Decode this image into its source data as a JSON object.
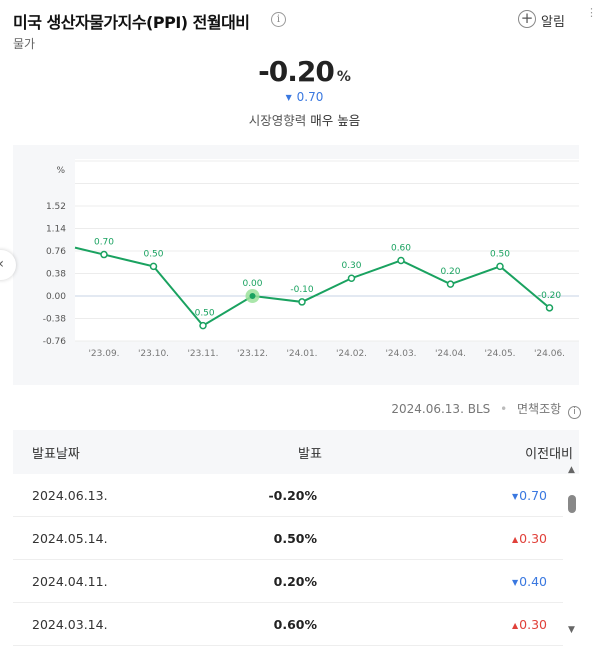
{
  "header": {
    "title": "미국 생산자물가지수(PPI) 전월대비",
    "info_icon": "i",
    "alarm_plus": "+",
    "alarm_label": "알림",
    "more_icon": "⋮",
    "category": "물가"
  },
  "summary": {
    "value": "-0.20",
    "unit": "%",
    "change_arrow": "▼",
    "change": "0.70",
    "impact_label": "시장영향력",
    "impact_value": "매우 높음"
  },
  "nav": {
    "prev_icon": "‹"
  },
  "colors": {
    "line": "#1aa260",
    "up": "#e0413a",
    "down": "#3a78e0"
  },
  "chart_data": {
    "type": "line",
    "ylabel": "%",
    "yticks": [
      "1.52",
      "1.14",
      "0.76",
      "0.38",
      "0.00",
      "-0.38",
      "-0.76"
    ],
    "ytick_values": [
      1.52,
      1.14,
      0.76,
      0.38,
      0.0,
      -0.38,
      -0.76
    ],
    "ylim": [
      -0.76,
      2.28
    ],
    "categories": [
      "'23.09.",
      "'23.10.",
      "'23.11.",
      "'23.12.",
      "'24.01.",
      "'24.02.",
      "'24.03.",
      "'24.04.",
      "'24.05.",
      "'24.06."
    ],
    "values": [
      0.7,
      0.5,
      -0.5,
      0.0,
      -0.1,
      0.3,
      0.6,
      0.2,
      0.5,
      -0.2
    ],
    "labels": [
      "0.70",
      "0.50",
      "-0.50",
      "0.00",
      "-0.10",
      "0.30",
      "0.60",
      "0.20",
      "0.50",
      "-0.20"
    ],
    "highlight_index": 3,
    "grid": true
  },
  "source": {
    "date": "2024.06.13.",
    "agency": "BLS",
    "dot": "•",
    "disclaimer": "면책조항",
    "disclaimer_icon": "i"
  },
  "table": {
    "headers": [
      "발표날짜",
      "발표",
      "이전대비"
    ],
    "rows": [
      {
        "date": "2024.06.13.",
        "value": "-0.20%",
        "dir": "down",
        "arrow": "▼",
        "change": "0.70"
      },
      {
        "date": "2024.05.14.",
        "value": "0.50%",
        "dir": "up",
        "arrow": "▲",
        "change": "0.30"
      },
      {
        "date": "2024.04.11.",
        "value": "0.20%",
        "dir": "down",
        "arrow": "▼",
        "change": "0.40"
      },
      {
        "date": "2024.03.14.",
        "value": "0.60%",
        "dir": "up",
        "arrow": "▲",
        "change": "0.30"
      }
    ],
    "scroll_up": "▲",
    "scroll_down": "▼"
  }
}
